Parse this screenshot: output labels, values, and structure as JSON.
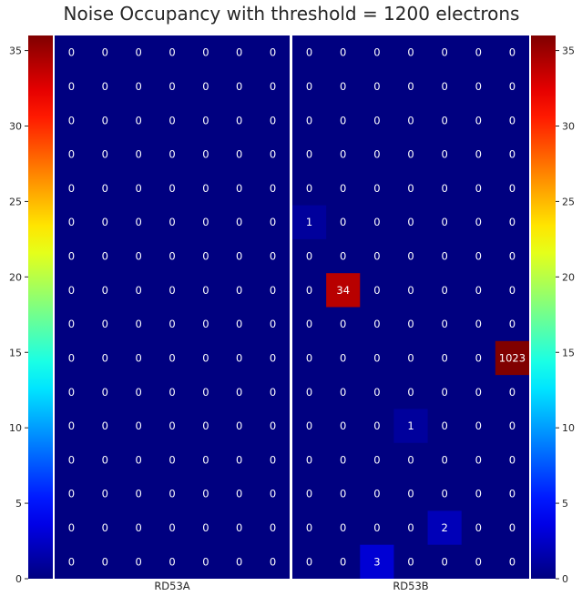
{
  "chart_data": {
    "type": "heatmap",
    "title": "Noise Occupancy with threshold = 1200 electrons",
    "colormap": "jet",
    "vmin": 0,
    "vmax": 36,
    "colorbar_ticks": [
      0,
      5,
      10,
      15,
      20,
      25,
      30,
      35
    ],
    "y_ticks": [
      0,
      5,
      10,
      15,
      20,
      25,
      30,
      35
    ],
    "ylim": [
      0,
      36
    ],
    "rows": 16,
    "cols": 7,
    "panels": [
      {
        "name": "RD53A",
        "grid": [
          [
            0,
            0,
            0,
            0,
            0,
            0,
            0
          ],
          [
            0,
            0,
            0,
            0,
            0,
            0,
            0
          ],
          [
            0,
            0,
            0,
            0,
            0,
            0,
            0
          ],
          [
            0,
            0,
            0,
            0,
            0,
            0,
            0
          ],
          [
            0,
            0,
            0,
            0,
            0,
            0,
            0
          ],
          [
            0,
            0,
            0,
            0,
            0,
            0,
            0
          ],
          [
            0,
            0,
            0,
            0,
            0,
            0,
            0
          ],
          [
            0,
            0,
            0,
            0,
            0,
            0,
            0
          ],
          [
            0,
            0,
            0,
            0,
            0,
            0,
            0
          ],
          [
            0,
            0,
            0,
            0,
            0,
            0,
            0
          ],
          [
            0,
            0,
            0,
            0,
            0,
            0,
            0
          ],
          [
            0,
            0,
            0,
            0,
            0,
            0,
            0
          ],
          [
            0,
            0,
            0,
            0,
            0,
            0,
            0
          ],
          [
            0,
            0,
            0,
            0,
            0,
            0,
            0
          ],
          [
            0,
            0,
            0,
            0,
            0,
            0,
            0
          ],
          [
            0,
            0,
            0,
            0,
            0,
            0,
            0
          ]
        ]
      },
      {
        "name": "RD53B",
        "grid": [
          [
            0,
            0,
            0,
            0,
            0,
            0,
            0
          ],
          [
            0,
            0,
            0,
            0,
            0,
            0,
            0
          ],
          [
            0,
            0,
            0,
            0,
            0,
            0,
            0
          ],
          [
            0,
            0,
            0,
            0,
            0,
            0,
            0
          ],
          [
            0,
            0,
            0,
            0,
            0,
            0,
            0
          ],
          [
            1,
            0,
            0,
            0,
            0,
            0,
            0
          ],
          [
            0,
            0,
            0,
            0,
            0,
            0,
            0
          ],
          [
            0,
            34,
            0,
            0,
            0,
            0,
            0
          ],
          [
            0,
            0,
            0,
            0,
            0,
            0,
            0
          ],
          [
            0,
            0,
            0,
            0,
            0,
            0,
            1023
          ],
          [
            0,
            0,
            0,
            0,
            0,
            0,
            0
          ],
          [
            0,
            0,
            0,
            1,
            0,
            0,
            0
          ],
          [
            0,
            0,
            0,
            0,
            0,
            0,
            0
          ],
          [
            0,
            0,
            0,
            0,
            0,
            0,
            0
          ],
          [
            0,
            0,
            0,
            0,
            2,
            0,
            0
          ],
          [
            0,
            0,
            3,
            0,
            0,
            0,
            0
          ]
        ]
      }
    ]
  }
}
